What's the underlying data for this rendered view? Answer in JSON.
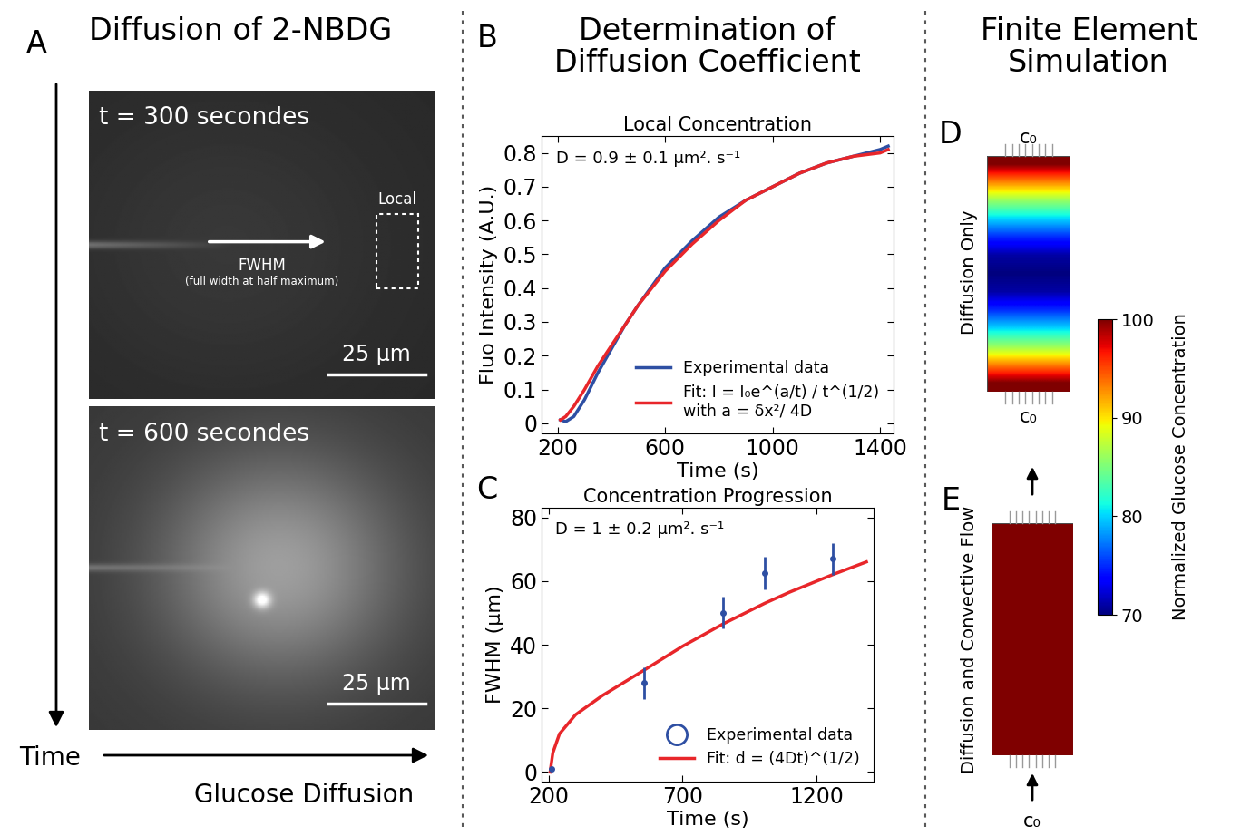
{
  "headings": {
    "A": "Diffusion of 2-NBDG",
    "B_C": "Determination of\nDiffusion Coefficient",
    "D_E": "Finite Element\nSimulation"
  },
  "panel_A": {
    "letter": "A",
    "images": [
      {
        "time_label": "t = 300 secondes",
        "scale_bar": "25 µm",
        "arrow_label": "FWHM",
        "arrow_note": "(full width at half maximum)",
        "region_label": "Local"
      },
      {
        "time_label": "t = 600 secondes",
        "scale_bar": "25 µm"
      }
    ],
    "vertical_axis": "Time",
    "horizontal_axis": "Glucose Diffusion"
  },
  "chart_data": [
    {
      "letter": "B",
      "type": "line",
      "title": "Local Concentration",
      "annotation": "D = 0.9 ± 0.1 µm². s⁻¹",
      "x_label": "Time (s)",
      "y_label": "Fluo Intensity (A.U.)",
      "x": [
        210,
        230,
        260,
        300,
        350,
        400,
        450,
        500,
        600,
        700,
        800,
        900,
        1000,
        1100,
        1200,
        1300,
        1400,
        1430
      ],
      "series": [
        {
          "name": "Experimental data",
          "color": "#2e4fa3",
          "values": [
            0.01,
            0.005,
            0.02,
            0.07,
            0.15,
            0.22,
            0.29,
            0.35,
            0.46,
            0.54,
            0.61,
            0.66,
            0.7,
            0.74,
            0.77,
            0.79,
            0.81,
            0.82
          ]
        },
        {
          "name": "Fit: I = I₀e^(a/t) / t^(1/2)\nwith a = δx²/ 4D",
          "color": "#e8262a",
          "values": [
            0.01,
            0.02,
            0.05,
            0.1,
            0.17,
            0.23,
            0.29,
            0.35,
            0.45,
            0.53,
            0.6,
            0.66,
            0.7,
            0.74,
            0.77,
            0.79,
            0.8,
            0.81
          ]
        }
      ],
      "xlim": [
        140,
        1450
      ],
      "ylim": [
        -0.03,
        0.85
      ],
      "xticks": [
        200,
        600,
        1000,
        1400
      ],
      "yticks": [
        0,
        0.1,
        0.2,
        0.3,
        0.4,
        0.5,
        0.6,
        0.7,
        0.8
      ],
      "legend": "lower right"
    },
    {
      "letter": "C",
      "type": "scatter",
      "title": "Concentration Progression",
      "annotation": "D = 1 ± 0.2 µm². s⁻¹",
      "x_label": "Time (s)",
      "y_label": "FWHM (µm)",
      "series": [
        {
          "name": "Experimental data",
          "type": "scatter",
          "marker": "o",
          "color": "#2e4fa3",
          "x": [
            210,
            556,
            851,
            1007,
            1261
          ],
          "values": [
            1,
            28,
            50,
            62.5,
            67
          ],
          "errors": [
            0,
            5,
            5,
            5,
            5
          ]
        },
        {
          "name": "Fit: d = (4Dt)^(1/2)",
          "type": "line",
          "color": "#e8262a",
          "x": [
            205,
            215,
            240,
            300,
            400,
            556,
            700,
            851,
            1007,
            1100,
            1261,
            1387
          ],
          "values": [
            0,
            6,
            12,
            18,
            24,
            32,
            39.5,
            46.5,
            53,
            56.5,
            62,
            66
          ]
        }
      ],
      "xlim": [
        173,
        1414
      ],
      "ylim": [
        -3,
        83
      ],
      "xticks": [
        200,
        700,
        1200
      ],
      "yticks": [
        0,
        20,
        40,
        60,
        80
      ],
      "legend": "lower right"
    }
  ],
  "simulation": {
    "inlet_label": "c₀",
    "color_bar": {
      "label": "Normalized Glucose Concentration",
      "range": [
        70,
        100
      ],
      "ticks": [
        70,
        80,
        90,
        100
      ]
    },
    "panels": [
      {
        "letter": "D",
        "label": "Diffusion Only",
        "cells": [
          100,
          93,
          86,
          80,
          75,
          71,
          70,
          71,
          75,
          80,
          86,
          93,
          100
        ]
      },
      {
        "letter": "E",
        "label": "Diffusion and Convective Flow",
        "cells": [
          100,
          100,
          100,
          100,
          100
        ]
      }
    ]
  }
}
